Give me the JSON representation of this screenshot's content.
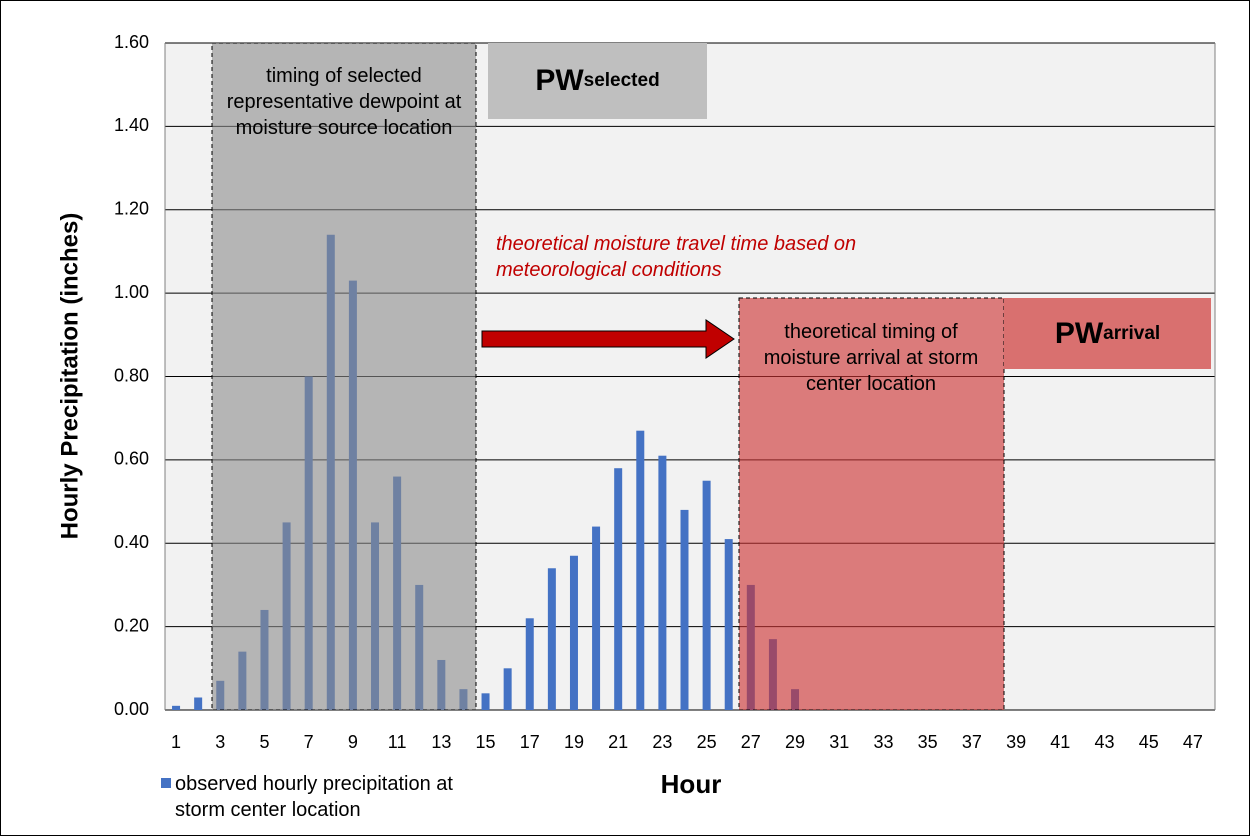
{
  "chart_data": {
    "type": "bar",
    "x_label": "Hour",
    "y_label": "Hourly Precipitation (inches)",
    "categories": [
      1,
      null,
      3,
      null,
      5,
      null,
      7,
      null,
      9,
      null,
      11,
      null,
      13,
      null,
      15,
      null,
      17,
      null,
      19,
      null,
      21,
      null,
      23,
      null,
      25,
      null,
      27,
      null,
      29,
      null,
      31,
      null,
      33,
      null,
      35,
      null,
      37,
      null,
      39,
      null,
      41,
      null,
      43,
      null,
      45,
      null,
      47
    ],
    "series": [
      {
        "name": "observed hourly precipitation at storm center location",
        "color": "#4472c4",
        "values": [
          0.01,
          0.03,
          0.07,
          0.14,
          0.24,
          0.45,
          0.8,
          1.14,
          1.03,
          0.45,
          0.56,
          0.3,
          0.12,
          0.05,
          0.04,
          0.1,
          0.22,
          0.34,
          0.37,
          0.44,
          0.58,
          0.67,
          0.61,
          0.48,
          0.55,
          0.41,
          0.3,
          0.17,
          0.05,
          0,
          0,
          0,
          0,
          0,
          0,
          0,
          0,
          0,
          0,
          0,
          0,
          0,
          0,
          0,
          0,
          0,
          0
        ]
      }
    ],
    "ylim": [
      0,
      1.6
    ],
    "yticks": [
      {
        "value": 0,
        "label": "0.00"
      },
      {
        "value": 0.2,
        "label": "0.20"
      },
      {
        "value": 0.4,
        "label": "0.40"
      },
      {
        "value": 0.6,
        "label": "0.60"
      },
      {
        "value": 0.8,
        "label": "0.80"
      },
      {
        "value": 1.0,
        "label": "1.00"
      },
      {
        "value": 1.2,
        "label": "1.20"
      },
      {
        "value": 1.4,
        "label": "1.40"
      },
      {
        "value": 1.6,
        "label": "1.60"
      }
    ],
    "grid": true,
    "legend": "bottom-left",
    "annotations": {
      "selected_timing": "timing of selected representative dewpoint at moisture source location",
      "travel_time": "theoretical moisture travel time based on meteorological conditions",
      "arrival_timing": "theoretical timing of moisture arrival at storm center location",
      "pw_selected": {
        "main": "PW",
        "sub": "selected"
      },
      "pw_arrival": {
        "main": "PW",
        "sub": "arrival"
      }
    }
  }
}
